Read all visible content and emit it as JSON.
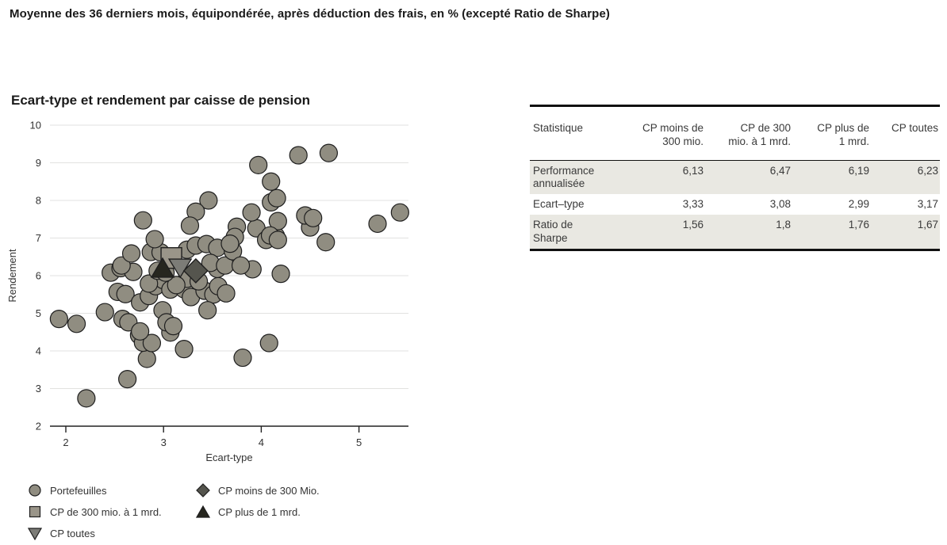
{
  "page_title": "Moyenne des 36 derniers mois, équipondérée, après déduction des frais, en % (excepté Ratio de Sharpe)",
  "chart_data": {
    "type": "scatter",
    "title": "Ecart-type et rendement par caisse de pension",
    "xlabel": "Ecart-type",
    "ylabel": "Rendement",
    "xlim": [
      1.84,
      5.51
    ],
    "ylim": [
      2,
      10
    ],
    "xticks": [
      2,
      3,
      4,
      5
    ],
    "yticks": [
      2,
      3,
      4,
      5,
      6,
      7,
      8,
      9,
      10
    ],
    "grid": "horizontal-only",
    "legend_position": "below-left",
    "series": [
      {
        "name": "Portefeuilles",
        "marker": "circle",
        "color": "#908d81",
        "points": [
          [
            1.93,
            4.85
          ],
          [
            2.11,
            4.72
          ],
          [
            2.21,
            2.74
          ],
          [
            2.4,
            5.03
          ],
          [
            2.63,
            3.25
          ],
          [
            2.83,
            3.79
          ],
          [
            3.21,
            4.05
          ],
          [
            3.81,
            3.82
          ],
          [
            4.08,
            4.21
          ],
          [
            2.75,
            4.42
          ],
          [
            2.79,
            4.22
          ],
          [
            2.88,
            4.21
          ],
          [
            3.07,
            4.49
          ],
          [
            2.53,
            5.57
          ],
          [
            2.61,
            5.51
          ],
          [
            2.76,
            5.29
          ],
          [
            2.58,
            4.85
          ],
          [
            2.64,
            4.76
          ],
          [
            2.85,
            5.46
          ],
          [
            2.92,
            5.72
          ],
          [
            3.0,
            5.88
          ],
          [
            3.07,
            5.63
          ],
          [
            2.99,
            5.08
          ],
          [
            3.03,
            4.76
          ],
          [
            3.1,
            4.66
          ],
          [
            2.76,
            4.52
          ],
          [
            3.21,
            5.64
          ],
          [
            3.28,
            5.43
          ],
          [
            3.42,
            5.6
          ],
          [
            3.51,
            5.5
          ],
          [
            3.56,
            5.72
          ],
          [
            3.64,
            5.53
          ],
          [
            3.45,
            5.08
          ],
          [
            3.24,
            5.92
          ],
          [
            3.36,
            5.85
          ],
          [
            3.13,
            5.75
          ],
          [
            2.85,
            5.79
          ],
          [
            2.46,
            6.08
          ],
          [
            2.56,
            6.2
          ],
          [
            2.69,
            6.1
          ],
          [
            2.94,
            6.13
          ],
          [
            3.02,
            6.08
          ],
          [
            3.55,
            6.18
          ],
          [
            3.91,
            6.17
          ],
          [
            4.2,
            6.05
          ],
          [
            2.57,
            6.27
          ],
          [
            2.67,
            6.59
          ],
          [
            2.87,
            6.63
          ],
          [
            2.97,
            6.62
          ],
          [
            3.24,
            6.69
          ],
          [
            3.33,
            6.8
          ],
          [
            3.44,
            6.84
          ],
          [
            3.55,
            6.74
          ],
          [
            3.48,
            6.34
          ],
          [
            3.63,
            6.27
          ],
          [
            3.71,
            6.65
          ],
          [
            3.79,
            6.27
          ],
          [
            3.75,
            7.3
          ],
          [
            3.73,
            7.03
          ],
          [
            3.95,
            7.26
          ],
          [
            4.15,
            7.05
          ],
          [
            4.05,
            6.95
          ],
          [
            4.17,
            7.45
          ],
          [
            4.5,
            7.28
          ],
          [
            4.66,
            6.89
          ],
          [
            3.9,
            7.68
          ],
          [
            3.68,
            6.85
          ],
          [
            4.09,
            7.07
          ],
          [
            4.17,
            6.95
          ],
          [
            3.46,
            8.0
          ],
          [
            3.33,
            7.7
          ],
          [
            3.27,
            7.33
          ],
          [
            2.79,
            7.47
          ],
          [
            2.91,
            6.97
          ],
          [
            4.1,
            7.95
          ],
          [
            4.16,
            8.06
          ],
          [
            4.45,
            7.6
          ],
          [
            4.53,
            7.53
          ],
          [
            3.97,
            8.94
          ],
          [
            4.38,
            9.2
          ],
          [
            4.69,
            9.26
          ],
          [
            4.1,
            8.5
          ],
          [
            5.19,
            7.38
          ],
          [
            5.42,
            7.68
          ]
        ]
      },
      {
        "name": "CP de 300 mio. à 1 mrd.",
        "marker": "square",
        "color": "#9a9589",
        "points": [
          [
            3.08,
            6.47
          ]
        ]
      },
      {
        "name": "CP toutes",
        "marker": "triangle-down",
        "color": "#7c7c77",
        "points": [
          [
            3.17,
            6.23
          ]
        ]
      },
      {
        "name": "CP plus de 1 mrd.",
        "marker": "triangle-up",
        "color": "#26261f",
        "points": [
          [
            2.99,
            6.19
          ]
        ]
      },
      {
        "name": "CP moins de 300 Mio.",
        "marker": "diamond",
        "color": "#55554e",
        "points": [
          [
            3.33,
            6.13
          ]
        ]
      }
    ],
    "legend": [
      {
        "label": "Portefeuilles",
        "marker": "circle"
      },
      {
        "label": "CP moins de 300 Mio.",
        "marker": "diamond"
      },
      {
        "label": "CP de 300 mio. à 1 mrd.",
        "marker": "square"
      },
      {
        "label": "CP plus de 1 mrd.",
        "marker": "triangle-up"
      },
      {
        "label": "CP toutes",
        "marker": "triangle-down"
      }
    ]
  },
  "table": {
    "columns": [
      "Statistique",
      "CP moins de\n300 mio.",
      "CP de 300\nmio. à 1 mrd.",
      "CP plus de\n1 mrd.",
      "CP toutes"
    ],
    "rows": [
      {
        "label": "Performance\nannualisée",
        "values": [
          "6,13",
          "6,47",
          "6,19",
          "6,23"
        ],
        "shaded": true
      },
      {
        "label": "Ecart–type",
        "values": [
          "3,33",
          "3,08",
          "2,99",
          "3,17"
        ],
        "shaded": false
      },
      {
        "label": "Ratio de\nSharpe",
        "values": [
          "1,56",
          "1,8",
          "1,76",
          "1,67"
        ],
        "shaded": true
      }
    ]
  },
  "colors": {
    "text": "#3a3a3a",
    "title_text": "#1a1a1a",
    "gridline": "#e2e2e0",
    "axis": "#222222",
    "marker_stroke": "#1f1f1f",
    "table_shaded_row": "#e9e8e2",
    "table_border": "#111111"
  }
}
